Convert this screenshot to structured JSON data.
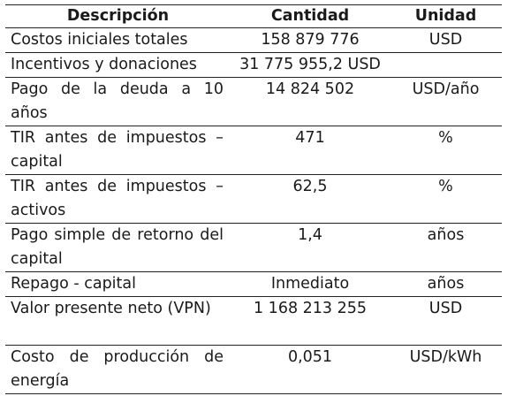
{
  "table": {
    "headers": {
      "description": "Descripción",
      "quantity": "Cantidad",
      "unit": "Unidad"
    },
    "rows": [
      {
        "description": "Costos iniciales totales",
        "quantity": "158 879 776",
        "unit": "USD"
      },
      {
        "description": "Incentivos y donaciones",
        "quantity": "31 775 955,2 USD",
        "unit": ""
      },
      {
        "description": "Pago de la deuda a 10 años",
        "quantity": "14 824  502",
        "unit": "USD/año"
      },
      {
        "description": "TIR antes de impuestos – capital",
        "quantity": "471",
        "unit": "%"
      },
      {
        "description": "TIR antes de impuestos – activos",
        "quantity": "62,5",
        "unit": "%"
      },
      {
        "description": "Pago simple de retorno del capital",
        "quantity": "1,4",
        "unit": "años"
      },
      {
        "description": "Repago - capital",
        "quantity": "Inmediato",
        "unit": "años"
      },
      {
        "description": "Valor presente neto (VPN)",
        "quantity": "1 168 213 255",
        "unit": "USD"
      },
      {
        "description": "Costo de producción de energía",
        "quantity": "0,051",
        "unit": "USD/kWh"
      }
    ]
  }
}
